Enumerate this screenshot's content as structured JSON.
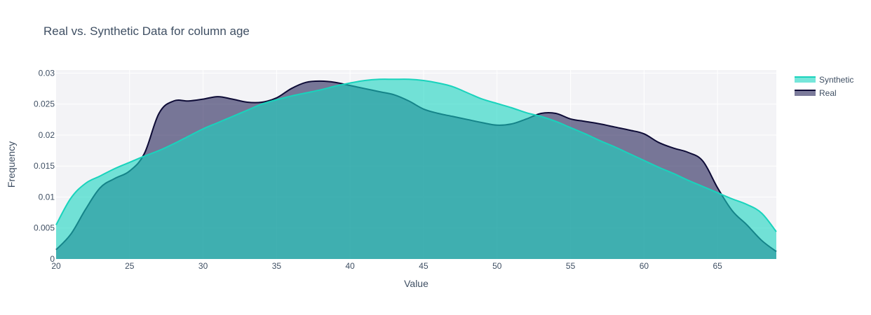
{
  "chart_data": {
    "type": "area",
    "title": "Real vs. Synthetic Data for column age",
    "xlabel": "Value",
    "ylabel": "Frequency",
    "xlim": [
      20,
      69
    ],
    "ylim": [
      0,
      0.0305
    ],
    "x_ticks": [
      20,
      25,
      30,
      35,
      40,
      45,
      50,
      55,
      60,
      65
    ],
    "y_ticks": [
      0,
      0.005,
      0.01,
      0.015,
      0.02,
      0.025,
      0.03
    ],
    "y_tick_labels": [
      "0",
      "0.005",
      "0.01",
      "0.015",
      "0.02",
      "0.025",
      "0.03"
    ],
    "grid": true,
    "legend_position": "top-right",
    "series": [
      {
        "name": "Real",
        "line_color": "#0d0b36",
        "fill_color": "rgba(30, 28, 82, 0.58)",
        "x": [
          20,
          21,
          22,
          23,
          24,
          25,
          26,
          27,
          28,
          29,
          30,
          31,
          32,
          33,
          34,
          35,
          36,
          37,
          38,
          39,
          40,
          41,
          42,
          43,
          44,
          45,
          46,
          47,
          48,
          49,
          50,
          51,
          52,
          53,
          54,
          55,
          56,
          57,
          58,
          59,
          60,
          61,
          62,
          63,
          64,
          65,
          66,
          67,
          68,
          69
        ],
        "y": [
          0.0015,
          0.004,
          0.008,
          0.0115,
          0.013,
          0.0142,
          0.017,
          0.0235,
          0.0255,
          0.0255,
          0.0258,
          0.0262,
          0.0258,
          0.0253,
          0.0253,
          0.026,
          0.0275,
          0.0285,
          0.0287,
          0.0285,
          0.028,
          0.0275,
          0.027,
          0.0265,
          0.0255,
          0.0242,
          0.0235,
          0.023,
          0.0225,
          0.022,
          0.0216,
          0.0218,
          0.0226,
          0.0235,
          0.0235,
          0.0226,
          0.0222,
          0.0218,
          0.0213,
          0.0208,
          0.0202,
          0.0188,
          0.0179,
          0.0172,
          0.0158,
          0.0115,
          0.0078,
          0.0055,
          0.003,
          0.0012
        ]
      },
      {
        "name": "Synthetic",
        "line_color": "#19d3bc",
        "fill_color": "rgba(27, 214, 193, 0.60)",
        "x": [
          20,
          21,
          22,
          23,
          24,
          25,
          26,
          27,
          28,
          29,
          30,
          31,
          32,
          33,
          34,
          35,
          36,
          37,
          38,
          39,
          40,
          41,
          42,
          43,
          44,
          45,
          46,
          47,
          48,
          49,
          50,
          51,
          52,
          53,
          54,
          55,
          56,
          57,
          58,
          59,
          60,
          61,
          62,
          63,
          64,
          65,
          66,
          67,
          68,
          69
        ],
        "y": [
          0.0055,
          0.0098,
          0.0122,
          0.0134,
          0.0146,
          0.0156,
          0.0166,
          0.0175,
          0.0186,
          0.0198,
          0.021,
          0.022,
          0.023,
          0.024,
          0.025,
          0.0257,
          0.0263,
          0.0268,
          0.0273,
          0.0279,
          0.0284,
          0.0288,
          0.029,
          0.029,
          0.029,
          0.0288,
          0.0284,
          0.0278,
          0.0268,
          0.0258,
          0.0251,
          0.0244,
          0.0236,
          0.023,
          0.0222,
          0.0212,
          0.0202,
          0.0191,
          0.0181,
          0.017,
          0.0159,
          0.0148,
          0.0138,
          0.0127,
          0.0117,
          0.0107,
          0.0097,
          0.0088,
          0.0074,
          0.0044
        ]
      }
    ],
    "legend_order": [
      "Synthetic",
      "Real"
    ]
  }
}
